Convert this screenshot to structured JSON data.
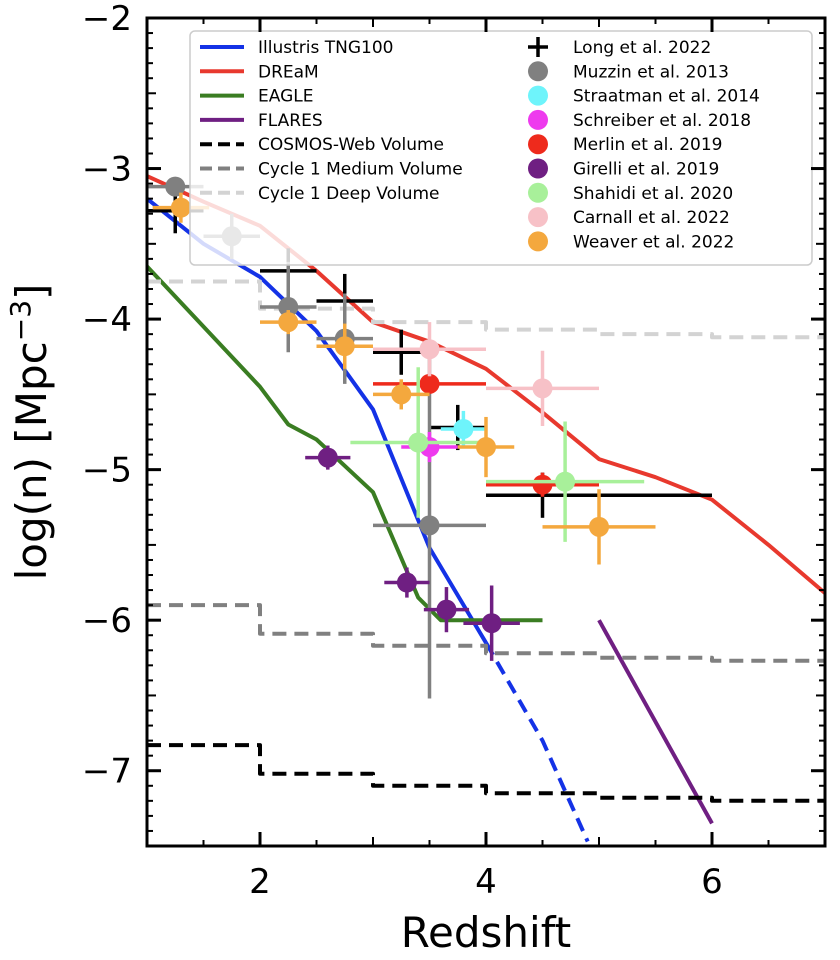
{
  "chart_data": {
    "type": "scatter",
    "title": "",
    "xlabel": "Redshift",
    "ylabel": "log(n) [Mpc",
    "ylabel_sup": "−3",
    "ylabel_close": "]",
    "xlim": [
      1,
      7
    ],
    "ylim": [
      -7.5,
      -2
    ],
    "x_major_ticks": [
      2,
      4,
      6
    ],
    "x_tick_labels": [
      "2",
      "4",
      "6"
    ],
    "y_major_ticks": [
      -7,
      -6,
      -5,
      -4,
      -3,
      -2
    ],
    "y_tick_labels": [
      "−7",
      "−6",
      "−5",
      "−4",
      "−3",
      "−2"
    ],
    "grid": false,
    "legend_position": "top-right",
    "lines": [
      {
        "name": "Illustris TNG100",
        "color": "#1432e6",
        "dash": "solid",
        "width": 4,
        "points": [
          [
            1,
            -3.2
          ],
          [
            1.5,
            -3.5
          ],
          [
            2,
            -3.72
          ],
          [
            2.5,
            -4.08
          ],
          [
            3,
            -4.6
          ],
          [
            3.5,
            -5.52
          ],
          [
            4,
            -6.15
          ]
        ]
      },
      {
        "name": "",
        "color": "#1432e6",
        "dash": "dashed",
        "width": 4,
        "legend": false,
        "points": [
          [
            4,
            -6.15
          ],
          [
            4.5,
            -6.8
          ],
          [
            4.9,
            -7.47
          ]
        ]
      },
      {
        "name": "DREaM",
        "color": "#e8392e",
        "dash": "solid",
        "width": 4,
        "points": [
          [
            1,
            -3.05
          ],
          [
            1.5,
            -3.22
          ],
          [
            2,
            -3.38
          ],
          [
            2.5,
            -3.68
          ],
          [
            3,
            -4.02
          ],
          [
            3.5,
            -4.15
          ],
          [
            4,
            -4.33
          ],
          [
            4.5,
            -4.62
          ],
          [
            5,
            -4.93
          ],
          [
            5.5,
            -5.05
          ],
          [
            6,
            -5.2
          ],
          [
            6.5,
            -5.5
          ],
          [
            7,
            -5.82
          ]
        ]
      },
      {
        "name": "EAGLE",
        "color": "#3a7d22",
        "dash": "solid",
        "width": 4,
        "points": [
          [
            1,
            -3.65
          ],
          [
            1.5,
            -4.05
          ],
          [
            2,
            -4.45
          ],
          [
            2.25,
            -4.7
          ],
          [
            2.5,
            -4.8
          ],
          [
            3,
            -5.15
          ],
          [
            3.4,
            -5.85
          ],
          [
            3.6,
            -6.0
          ],
          [
            4,
            -6.0
          ],
          [
            4.5,
            -6.0
          ]
        ]
      },
      {
        "name": "FLARES",
        "color": "#6f1f82",
        "dash": "solid",
        "width": 4,
        "points": [
          [
            5,
            -6.0
          ],
          [
            6,
            -7.35
          ]
        ]
      },
      {
        "name": "COSMOS-Web Volume",
        "color": "#000000",
        "dash": "dashed",
        "width": 4,
        "step": true,
        "points": [
          [
            1,
            -6.83
          ],
          [
            2,
            -6.83
          ],
          [
            2,
            -7.02
          ],
          [
            3,
            -7.02
          ],
          [
            3,
            -7.1
          ],
          [
            4,
            -7.1
          ],
          [
            4,
            -7.15
          ],
          [
            5,
            -7.15
          ],
          [
            5,
            -7.18
          ],
          [
            6,
            -7.18
          ],
          [
            6,
            -7.2
          ],
          [
            7,
            -7.2
          ]
        ]
      },
      {
        "name": "Cycle 1 Medium Volume",
        "color": "#808080",
        "dash": "dashed",
        "width": 4,
        "step": true,
        "points": [
          [
            1,
            -5.9
          ],
          [
            2,
            -5.9
          ],
          [
            2,
            -6.09
          ],
          [
            3,
            -6.09
          ],
          [
            3,
            -6.17
          ],
          [
            4,
            -6.17
          ],
          [
            4,
            -6.22
          ],
          [
            5,
            -6.22
          ],
          [
            5,
            -6.25
          ],
          [
            6,
            -6.25
          ],
          [
            6,
            -6.27
          ],
          [
            7,
            -6.27
          ]
        ]
      },
      {
        "name": "Cycle 1 Deep Volume",
        "color": "#d3d3d3",
        "dash": "dashed",
        "width": 4,
        "step": true,
        "points": [
          [
            1,
            -3.75
          ],
          [
            2,
            -3.75
          ],
          [
            2,
            -3.93
          ],
          [
            3,
            -3.93
          ],
          [
            3,
            -4.02
          ],
          [
            4,
            -4.02
          ],
          [
            4,
            -4.07
          ],
          [
            5,
            -4.07
          ],
          [
            5,
            -4.1
          ],
          [
            6,
            -4.1
          ],
          [
            6,
            -4.12
          ],
          [
            7,
            -4.12
          ]
        ]
      }
    ],
    "series": [
      {
        "name": "Long et al. 2022",
        "color": "#000000",
        "marker": "plus",
        "points": [
          {
            "x": 1.25,
            "y": -3.28,
            "xerr": 0.25,
            "yerr": 0.15
          },
          {
            "x": 2.25,
            "y": -3.68,
            "xerr": 0.25,
            "yerr": 0.15
          },
          {
            "x": 2.75,
            "y": -3.88,
            "xerr": 0.25,
            "yerr": 0.18
          },
          {
            "x": 3.25,
            "y": -4.22,
            "xerr": 0.25,
            "yerr": 0.15
          },
          {
            "x": 3.75,
            "y": -4.72,
            "xerr": 0.25,
            "yerr": 0.15
          },
          {
            "x": 4.5,
            "y": -5.17,
            "xerr": 0.5,
            "yerr": 0.15
          },
          {
            "x": 5.5,
            "y": -5.17,
            "xerr": 0.5,
            "yerr": 0
          }
        ]
      },
      {
        "name": "Muzzin et al. 2013",
        "color": "#808080",
        "marker": "circle",
        "points": [
          {
            "x": 1.25,
            "y": -3.12,
            "xerr": 0.25,
            "yerr": 0.05
          },
          {
            "x": 1.75,
            "y": -3.45,
            "xerr": 0.25,
            "yerr": 0.15
          },
          {
            "x": 2.25,
            "y": -3.92,
            "xerr": 0.25,
            "yerr": 0.3
          },
          {
            "x": 2.75,
            "y": -4.13,
            "xerr": 0.25,
            "yerr": 0.3
          },
          {
            "x": 3.5,
            "y": -5.37,
            "xerr": 0.5,
            "yerr": 1.15
          }
        ]
      },
      {
        "name": "Straatman et al. 2014",
        "color": "#6ef4fb",
        "marker": "circle",
        "points": [
          {
            "x": 3.8,
            "y": -4.73,
            "xerr": 0.2,
            "yerr": 0.12
          }
        ]
      },
      {
        "name": "Schreiber et al. 2018",
        "color": "#ee3aee",
        "marker": "circle",
        "points": [
          {
            "x": 3.5,
            "y": -4.85,
            "xerr": 0.25,
            "yerr": 0.1
          }
        ]
      },
      {
        "name": "Merlin et al. 2019",
        "color": "#ee2a1c",
        "marker": "circle",
        "points": [
          {
            "x": 3.5,
            "y": -4.43,
            "xerr": 0.5,
            "yerr": 0.05
          },
          {
            "x": 4.5,
            "y": -5.1,
            "xerr": 0.5,
            "yerr": 0.08
          }
        ]
      },
      {
        "name": "Girelli et al. 2019",
        "color": "#6f1f82",
        "marker": "circle",
        "points": [
          {
            "x": 2.6,
            "y": -4.92,
            "xerr": 0.2,
            "yerr": 0.08
          },
          {
            "x": 3.3,
            "y": -5.75,
            "xerr": 0.2,
            "yerr": 0.1
          },
          {
            "x": 3.65,
            "y": -5.93,
            "xerr": 0.2,
            "yerr": 0.15
          },
          {
            "x": 4.05,
            "y": -6.02,
            "xerr": 0.25,
            "yerr": 0.25
          }
        ]
      },
      {
        "name": "Shahidi et al. 2020",
        "color": "#a8f09a",
        "marker": "circle",
        "points": [
          {
            "x": 3.4,
            "y": -4.82,
            "xerr": 0.6,
            "yerr": 0.5
          },
          {
            "x": 4.7,
            "y": -5.08,
            "xerr": 0.7,
            "yerr": 0.4
          }
        ]
      },
      {
        "name": "Carnall et al. 2022",
        "color": "#f7c1c7",
        "marker": "circle",
        "points": [
          {
            "x": 3.5,
            "y": -4.2,
            "xerr": 0.5,
            "yerr": 0.18
          },
          {
            "x": 4.5,
            "y": -4.46,
            "xerr": 0.5,
            "yerr": 0.25
          }
        ]
      },
      {
        "name": "Weaver et al. 2022",
        "color": "#f4a83e",
        "marker": "circle",
        "points": [
          {
            "x": 1.3,
            "y": -3.26,
            "xerr": 0.25,
            "yerr": 0.1
          },
          {
            "x": 2.25,
            "y": -4.02,
            "xerr": 0.25,
            "yerr": 0.08
          },
          {
            "x": 2.75,
            "y": -4.18,
            "xerr": 0.25,
            "yerr": 0.15
          },
          {
            "x": 3.25,
            "y": -4.5,
            "xerr": 0.25,
            "yerr": 0.1
          },
          {
            "x": 4.0,
            "y": -4.85,
            "xerr": 0.25,
            "yerr": 0.2
          },
          {
            "x": 5.0,
            "y": -5.38,
            "xerr": 0.5,
            "yerr": 0.25
          }
        ]
      }
    ]
  }
}
